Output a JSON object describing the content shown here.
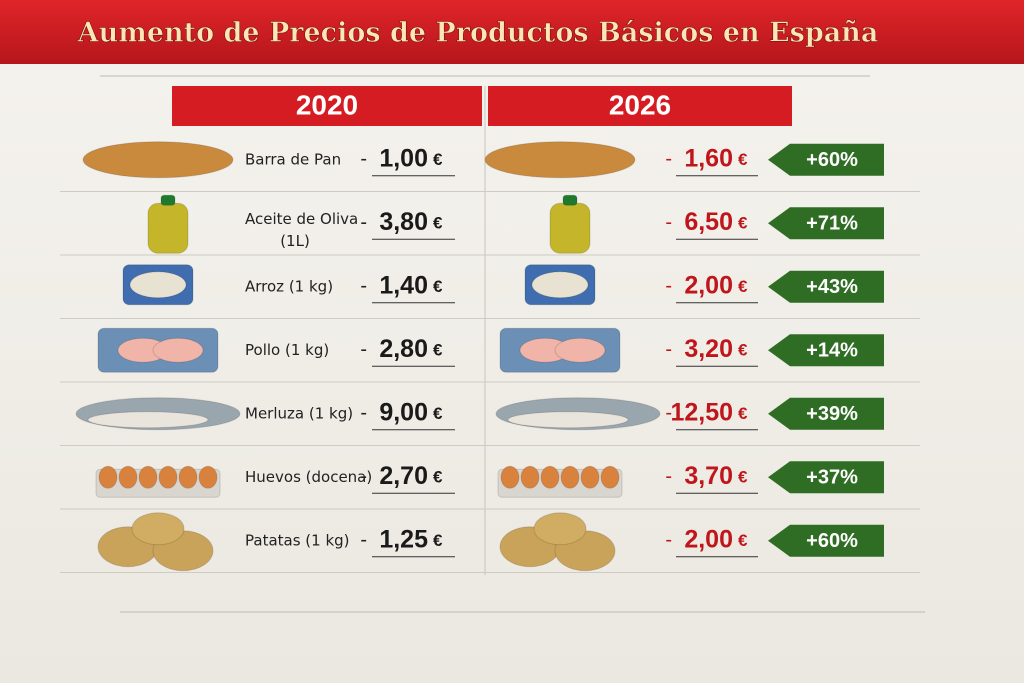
{
  "title": "Aumento de Precios de Productos Básicos en España",
  "table": {
    "headers": [
      "2020",
      "2026"
    ],
    "currency": "€",
    "separator": "-",
    "rows": [
      {
        "product": "Barra de Pan",
        "price_2020": "1,00",
        "price_2026": "1,60",
        "change": "+60%"
      },
      {
        "product": "Aceite de Oliva",
        "note": "(1L)",
        "price_2020": "3,80",
        "price_2026": "6,50",
        "change": "+71%"
      },
      {
        "product": "Arroz (1 kg)",
        "price_2020": "1,40",
        "price_2026": "2,00",
        "change": "+43%"
      },
      {
        "product": "Pollo (1 kg)",
        "price_2020": "2,80",
        "price_2026": "3,20",
        "change": "+14%"
      },
      {
        "product": "Merluza (1 kg)",
        "price_2020": "9,00",
        "price_2026": "12,50",
        "change": "+39%"
      },
      {
        "product": "Huevos (docena)",
        "price_2020": "2,70",
        "price_2026": "3,70",
        "change": "+37%"
      },
      {
        "product": "Patatas (1 kg)",
        "price_2020": "1,25",
        "price_2026": "2,00",
        "change": "+60%"
      }
    ]
  }
}
